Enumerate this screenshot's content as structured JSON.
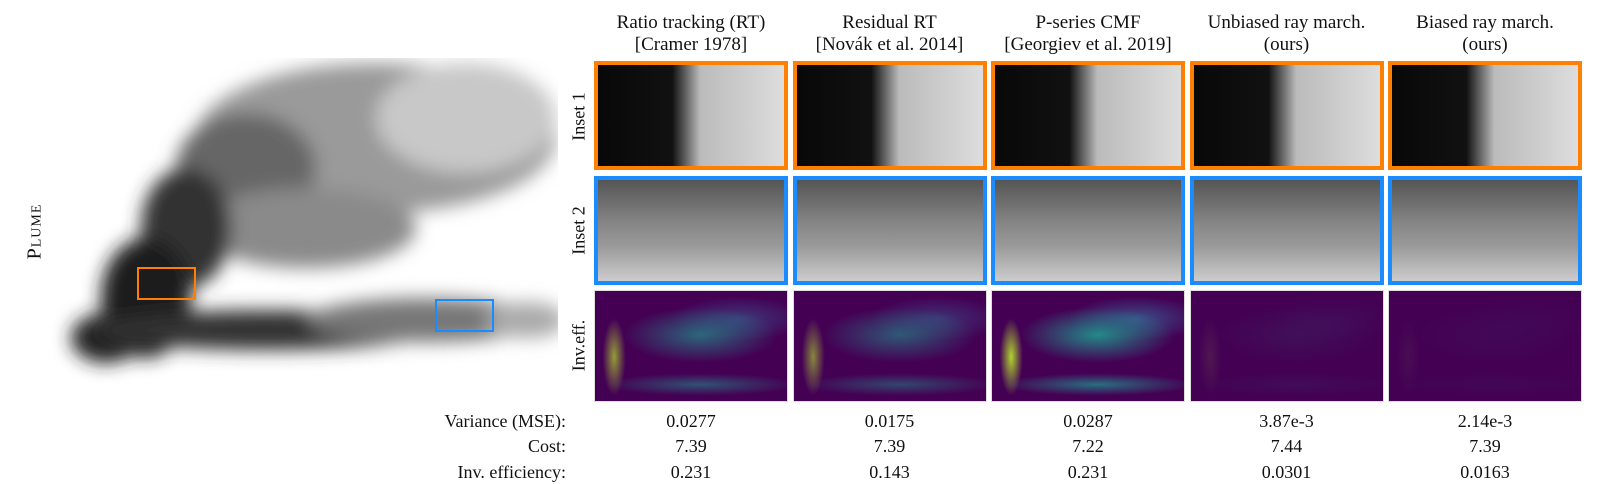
{
  "scene_label": "Plume",
  "inset_colors": {
    "inset1": "#ff8000",
    "inset2": "#1a8cff"
  },
  "row_labels": [
    "Inset 1",
    "Inset 2",
    "Inv.eff."
  ],
  "stat_labels": [
    "Variance (MSE):",
    "Cost:",
    "Inv. efficiency:"
  ],
  "methods": [
    {
      "title_line1": "Ratio tracking (RT)",
      "title_line2": "[Cramer 1978]",
      "variance": "0.0277",
      "cost": "7.39",
      "inv_efficiency": "0.231"
    },
    {
      "title_line1": "Residual RT",
      "title_line2": "[Novák et al. 2014]",
      "variance": "0.0175",
      "cost": "7.39",
      "inv_efficiency": "0.143"
    },
    {
      "title_line1": "P-series CMF",
      "title_line2": "[Georgiev et al. 2019]",
      "variance": "0.0287",
      "cost": "7.22",
      "inv_efficiency": "0.231"
    },
    {
      "title_line1": "Unbiased ray march.",
      "title_line2": "(ours)",
      "variance": "3.87e-3",
      "cost": "7.44",
      "inv_efficiency": "0.0301"
    },
    {
      "title_line1": "Biased ray march.",
      "title_line2": "(ours)",
      "variance": "2.14e-3",
      "cost": "7.39",
      "inv_efficiency": "0.0163"
    }
  ]
}
